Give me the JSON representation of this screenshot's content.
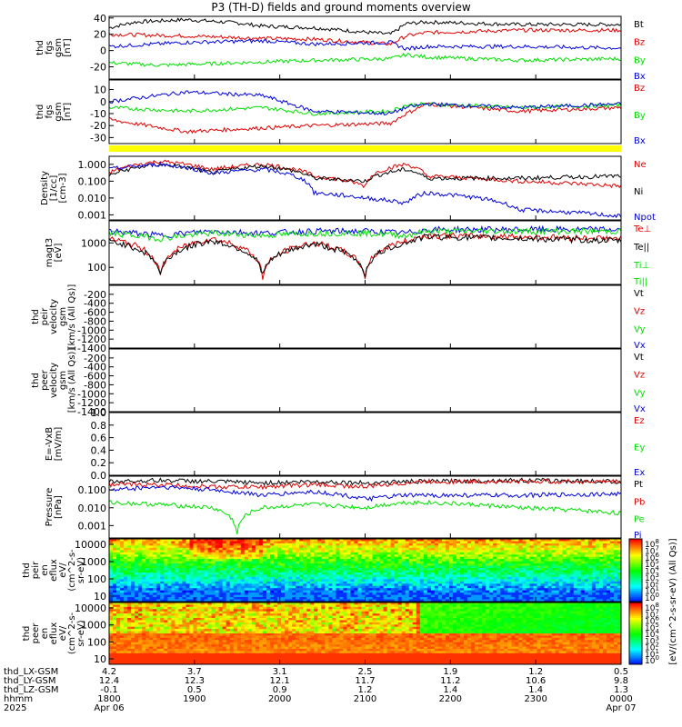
{
  "title": "P3 (TH-D) fields and ground moments overview",
  "colors": {
    "black": "#000000",
    "red": "#e00000",
    "green": "#00e000",
    "blue": "#0000dd",
    "yellow": "#ffff00"
  },
  "chart_data": [
    {
      "type": "line",
      "panel": "fgs-gsm-1",
      "ylabel": [
        "thd",
        "fgs",
        "gsm",
        "[nT]"
      ],
      "yticks": [
        40,
        20,
        0,
        -20
      ],
      "ylim": [
        -35,
        42
      ],
      "legend": [
        {
          "label": "Bt",
          "color": "black"
        },
        {
          "label": "Bz",
          "color": "red"
        },
        {
          "label": "By",
          "color": "green"
        },
        {
          "label": "Bx",
          "color": "blue"
        }
      ],
      "series": [
        {
          "color": "black",
          "t": [
            0,
            0.05,
            0.15,
            0.25,
            0.3,
            0.4,
            0.55,
            0.58,
            0.62,
            0.8,
            1
          ],
          "y": [
            28,
            35,
            38,
            34,
            30,
            28,
            20,
            33,
            35,
            32,
            32
          ]
        },
        {
          "color": "red",
          "t": [
            0,
            0.15,
            0.3,
            0.4,
            0.55,
            0.58,
            0.62,
            0.8,
            1
          ],
          "y": [
            20,
            18,
            15,
            14,
            8,
            18,
            22,
            25,
            25
          ]
        },
        {
          "color": "green",
          "t": [
            0,
            0.1,
            0.25,
            0.4,
            0.55,
            0.58,
            0.62,
            0.8,
            1
          ],
          "y": [
            -15,
            -18,
            -15,
            -12,
            -10,
            -5,
            -8,
            -12,
            -10
          ]
        },
        {
          "color": "blue",
          "t": [
            0,
            0.15,
            0.3,
            0.4,
            0.55,
            0.58,
            0.62,
            0.8,
            1
          ],
          "y": [
            5,
            10,
            12,
            8,
            10,
            2,
            5,
            5,
            3
          ]
        }
      ]
    },
    {
      "type": "line",
      "panel": "fgs-gsm-2",
      "ylabel": [
        "thd",
        "fgs",
        "gsm",
        "[nT]"
      ],
      "yticks": [
        10,
        0,
        -10,
        -20,
        -30
      ],
      "ylim": [
        -35,
        18
      ],
      "legend": [
        {
          "label": "Bz",
          "color": "red"
        },
        {
          "label": "By",
          "color": "green"
        },
        {
          "label": "Bx",
          "color": "blue"
        }
      ],
      "series": [
        {
          "color": "red",
          "t": [
            0,
            0.15,
            0.3,
            0.4,
            0.55,
            0.58,
            0.62,
            0.8,
            1
          ],
          "y": [
            -15,
            -25,
            -22,
            -20,
            -18,
            -10,
            -2,
            -8,
            -5
          ]
        },
        {
          "color": "green",
          "t": [
            0,
            0.15,
            0.3,
            0.4,
            0.55,
            0.58,
            0.62,
            0.8,
            1
          ],
          "y": [
            -5,
            -8,
            -5,
            -10,
            -8,
            -3,
            -2,
            -5,
            -3
          ]
        },
        {
          "color": "blue",
          "t": [
            0,
            0.15,
            0.3,
            0.4,
            0.55,
            0.58,
            0.62,
            0.8,
            1
          ],
          "y": [
            0,
            8,
            5,
            -8,
            -10,
            -5,
            -2,
            -5,
            -2
          ]
        }
      ]
    },
    {
      "type": "line",
      "panel": "density",
      "ylog": true,
      "ylabel": [
        "Density",
        "[1/cc]",
        "[cm-3]"
      ],
      "yticks": [
        "1.000",
        "0.100",
        "0.010",
        "0.001"
      ],
      "ylim": [
        0.0005,
        3
      ],
      "legend": [
        {
          "label": "Ne",
          "color": "red"
        },
        {
          "label": "Ni",
          "color": "black"
        },
        {
          "label": "Npot",
          "color": "blue"
        }
      ],
      "series": [
        {
          "color": "red",
          "t": [
            0,
            0.1,
            0.2,
            0.3,
            0.4,
            0.5,
            0.58,
            0.62,
            0.8,
            1
          ],
          "y": [
            0.3,
            1.5,
            0.5,
            1.0,
            0.2,
            0.05,
            1.0,
            0.2,
            0.1,
            0.05
          ]
        },
        {
          "color": "black",
          "t": [
            0,
            0.1,
            0.2,
            0.3,
            0.4,
            0.5,
            0.58,
            0.62,
            0.8,
            1
          ],
          "y": [
            0.2,
            1.0,
            0.3,
            0.8,
            0.15,
            0.1,
            0.5,
            0.15,
            0.15,
            0.2
          ]
        },
        {
          "color": "blue",
          "t": [
            0,
            0.1,
            0.2,
            0.3,
            0.4,
            0.5,
            0.58,
            0.62,
            0.8,
            1
          ],
          "y": [
            0.5,
            1.0,
            0.3,
            0.5,
            0.02,
            0.01,
            0.005,
            0.02,
            0.002,
            0.0008
          ]
        }
      ]
    },
    {
      "type": "line",
      "panel": "temperature",
      "ylog": true,
      "ylabel": [
        "magt3",
        "[eV]"
      ],
      "yticks": [
        "1000",
        "100"
      ],
      "ylim": [
        20,
        8000
      ],
      "legend": [
        {
          "label": "Te⊥",
          "color": "red"
        },
        {
          "label": "Te||",
          "color": "black"
        },
        {
          "label": "Ti⊥",
          "color": "green"
        },
        {
          "label": "Ti||",
          "color": "green"
        }
      ],
      "series": [
        {
          "color": "blue",
          "t": [
            0,
            0.1,
            0.2,
            0.3,
            0.4,
            0.5,
            0.58,
            0.62,
            0.8,
            1
          ],
          "y": [
            3000,
            2000,
            3000,
            2500,
            3000,
            3000,
            2500,
            3500,
            3500,
            3500
          ]
        },
        {
          "color": "green",
          "t": [
            0,
            0.1,
            0.2,
            0.3,
            0.4,
            0.5,
            0.58,
            0.62,
            0.8,
            1
          ],
          "y": [
            2500,
            1500,
            2500,
            2000,
            2500,
            2500,
            2000,
            3000,
            3000,
            3000
          ]
        },
        {
          "color": "red",
          "t": [
            0,
            0.1,
            0.2,
            0.3,
            0.4,
            0.5,
            0.58,
            0.62,
            0.8,
            1
          ],
          "y": [
            1500,
            40,
            1500,
            40,
            1000,
            40,
            1200,
            2000,
            1800,
            1500
          ]
        },
        {
          "color": "black",
          "t": [
            0,
            0.1,
            0.2,
            0.3,
            0.4,
            0.5,
            0.58,
            0.62,
            0.8,
            1
          ],
          "y": [
            1200,
            50,
            1200,
            50,
            900,
            50,
            1000,
            1800,
            1500,
            1200
          ]
        }
      ]
    },
    {
      "type": "line",
      "panel": "peir-velocity",
      "ylabel": [
        "thd",
        "peir",
        "velocity",
        "gsm",
        "[km/s (All Qs)]"
      ],
      "yticks": [
        "-200",
        "-400",
        "-600",
        "-800",
        "-1000",
        "-1200",
        "-1400"
      ],
      "ylim": [
        -1400,
        0
      ],
      "legend": [
        {
          "label": "Vt",
          "color": "black"
        },
        {
          "label": "Vz",
          "color": "red"
        },
        {
          "label": "Vy",
          "color": "green"
        },
        {
          "label": "Vx",
          "color": "blue"
        }
      ],
      "series": []
    },
    {
      "type": "line",
      "panel": "peer-velocity",
      "ylabel": [
        "thd",
        "peer",
        "velocity",
        "gsm",
        "[km/s (All Qs)]"
      ],
      "yticks": [
        "-200",
        "-400",
        "-600",
        "-800",
        "-1000",
        "-1200",
        "-1400"
      ],
      "ylim": [
        -1400,
        0
      ],
      "legend": [
        {
          "label": "Vt",
          "color": "black"
        },
        {
          "label": "Vz",
          "color": "red"
        },
        {
          "label": "Vy",
          "color": "green"
        },
        {
          "label": "Vx",
          "color": "blue"
        }
      ],
      "series": []
    },
    {
      "type": "line",
      "panel": "efield",
      "ylabel": [
        "E=-VxB",
        "[mV/m]"
      ],
      "yticks": [
        "1.0",
        "0.8",
        "0.6",
        "0.4",
        "0.2",
        "0.0"
      ],
      "ylim": [
        0,
        1
      ],
      "legend": [
        {
          "label": "Ez",
          "color": "red"
        },
        {
          "label": "Ey",
          "color": "green"
        },
        {
          "label": "Ex",
          "color": "blue"
        }
      ],
      "series": []
    },
    {
      "type": "line",
      "panel": "pressure",
      "ylog": true,
      "ylabel": [
        "Pressure",
        "[nPa]"
      ],
      "yticks": [
        "0.100",
        "0.010",
        "0.001"
      ],
      "ylim": [
        0.0002,
        0.6
      ],
      "legend": [
        {
          "label": "Pt",
          "color": "black"
        },
        {
          "label": "Pb",
          "color": "red"
        },
        {
          "label": "Pe",
          "color": "green"
        },
        {
          "label": "Pi",
          "color": "blue"
        }
      ],
      "series": [
        {
          "color": "black",
          "t": [
            0,
            0.1,
            0.2,
            0.3,
            0.4,
            0.5,
            0.58,
            0.62,
            0.8,
            1
          ],
          "y": [
            0.3,
            0.35,
            0.3,
            0.25,
            0.3,
            0.25,
            0.3,
            0.3,
            0.35,
            0.3
          ]
        },
        {
          "color": "red",
          "t": [
            0,
            0.1,
            0.2,
            0.3,
            0.4,
            0.5,
            0.58,
            0.62,
            0.8,
            1
          ],
          "y": [
            0.2,
            0.2,
            0.15,
            0.15,
            0.2,
            0.15,
            0.25,
            0.3,
            0.3,
            0.3
          ]
        },
        {
          "color": "blue",
          "t": [
            0,
            0.1,
            0.2,
            0.3,
            0.4,
            0.5,
            0.58,
            0.62,
            0.8,
            1
          ],
          "y": [
            0.1,
            0.15,
            0.1,
            0.05,
            0.08,
            0.03,
            0.05,
            0.05,
            0.05,
            0.06
          ]
        },
        {
          "color": "green",
          "t": [
            0,
            0.1,
            0.2,
            0.25,
            0.3,
            0.4,
            0.5,
            0.58,
            0.62,
            0.8,
            1
          ],
          "y": [
            0.02,
            0.015,
            0.01,
            0.0003,
            0.01,
            0.015,
            0.01,
            0.02,
            0.02,
            0.01,
            0.005
          ]
        }
      ]
    },
    {
      "type": "heatmap",
      "panel": "peir-en-eflux",
      "ylabel": [
        "thd",
        "peir",
        "en",
        "eflux",
        "eV/",
        "(cm^2-s-",
        "sr-eV)"
      ],
      "yticks": [
        "10000",
        "1000",
        "100",
        "10"
      ]
    },
    {
      "type": "heatmap",
      "panel": "peer-en-eflux",
      "ylabel": [
        "thd",
        "peer",
        "en",
        "eflux",
        "eV/",
        "(cm^2-s-",
        "sr-eV)"
      ],
      "yticks": [
        "10000",
        "1000",
        "100",
        "10"
      ]
    }
  ],
  "colorbar": {
    "label": "[eV/(cm^2-s-sr-eV) (All Qs)]",
    "ticks": [
      "10^8",
      "10^7",
      "10^6",
      "10^5",
      "10^4",
      "10^3",
      "10^2",
      "10^1",
      "10^0"
    ],
    "ticks2": [
      "10^8",
      "10^7",
      "10^6",
      "10^5",
      "10^4",
      "10^3",
      "10^2",
      "10^1",
      "10^0"
    ]
  },
  "xaxis": {
    "labels": [
      "thd_LX-GSM",
      "thd_LY-GSM",
      "thd_LZ-GSM",
      "hhmm",
      "2025"
    ],
    "columns": [
      {
        "lx": "4.2",
        "ly": "12.4",
        "lz": "-0.1",
        "hhmm": "1800",
        "date": "Apr 06"
      },
      {
        "lx": "3.7",
        "ly": "12.3",
        "lz": "0.5",
        "hhmm": "1900",
        "date": ""
      },
      {
        "lx": "3.1",
        "ly": "12.1",
        "lz": "0.9",
        "hhmm": "2000",
        "date": ""
      },
      {
        "lx": "2.5",
        "ly": "11.7",
        "lz": "1.2",
        "hhmm": "2100",
        "date": ""
      },
      {
        "lx": "1.9",
        "ly": "11.2",
        "lz": "1.4",
        "hhmm": "2200",
        "date": ""
      },
      {
        "lx": "1.2",
        "ly": "10.6",
        "lz": "1.4",
        "hhmm": "2300",
        "date": ""
      },
      {
        "lx": "0.5",
        "ly": "9.8",
        "lz": "1.3",
        "hhmm": "0000",
        "date": "Apr 07"
      }
    ]
  }
}
